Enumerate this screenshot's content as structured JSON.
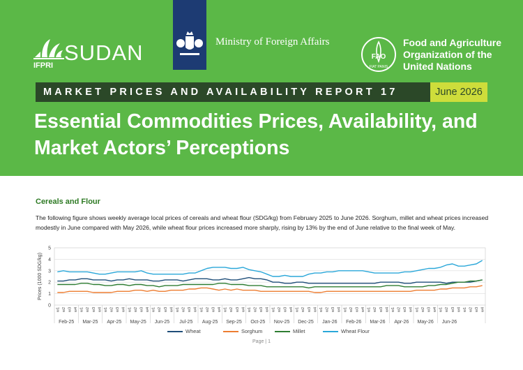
{
  "header": {
    "ifpri_label": "IFPRI",
    "sudan_label": "SUDAN",
    "ministry_label": "Ministry of Foreign Affairs",
    "fao_lines": [
      "Food and Agriculture",
      "Organization of the",
      "United Nations"
    ],
    "fao_letters": "FAO",
    "fao_motto": "FIAT PANIS",
    "report_title": "MARKET PRICES AND AVAILABILITY REPORT 17",
    "report_date": "June 2026",
    "main_title": "Essential Commodities Prices, Availability, and Market Actors’ Perceptions"
  },
  "body": {
    "section_heading": "Cereals and Flour",
    "paragraph": "The following figure shows weekly average local prices of cereals and wheat flour (SDG/kg) from February 2025 to June 2026. Sorghum, millet and wheat prices increased modestly in June compared with May 2026, while wheat flour prices increased more sharply, rising by 13% by the end of June relative to the final week of May."
  },
  "chart_data": {
    "type": "line",
    "ylabel": "Prices (1000 SDG/kg)",
    "ylim": [
      0,
      5
    ],
    "yticks": [
      "0",
      "1",
      "2",
      "3",
      "4",
      "5"
    ],
    "grid": true,
    "legend_position": "bottom",
    "week_labels": [
      "w1",
      "w2",
      "w3",
      "w4"
    ],
    "months": [
      "Feb-25",
      "Mar-25",
      "Apr-25",
      "May-25",
      "Jun-25",
      "Jul-25",
      "Aug-25",
      "Sep-25",
      "Oct-25",
      "Nov-25",
      "Dec-25",
      "Jan-26",
      "Feb-26",
      "Mar-26",
      "Apr-26",
      "May-26",
      "Jun-26"
    ],
    "series": [
      {
        "name": "Wheat",
        "color": "#1f4e79",
        "values": [
          2.1,
          2.1,
          2.2,
          2.2,
          2.3,
          2.3,
          2.2,
          2.2,
          2.2,
          2.1,
          2.2,
          2.2,
          2.3,
          2.2,
          2.2,
          2.2,
          2.1,
          2.1,
          2.2,
          2.2,
          2.2,
          2.1,
          2.2,
          2.3,
          2.3,
          2.3,
          2.2,
          2.2,
          2.3,
          2.2,
          2.2,
          2.3,
          2.4,
          2.3,
          2.3,
          2.2,
          2.0,
          2.0,
          1.9,
          1.9,
          2.0,
          2.0,
          1.9,
          1.9,
          1.9,
          1.9,
          1.9,
          1.9,
          1.9,
          1.9,
          1.9,
          1.9,
          1.9,
          1.9,
          2.0,
          2.0,
          2.0,
          2.0,
          1.9,
          1.9,
          2.0,
          2.0,
          2.0,
          2.0,
          2.0,
          1.9,
          2.0,
          2.0,
          2.0,
          2.0,
          2.1,
          2.2
        ]
      },
      {
        "name": "Sorghum",
        "color": "#ed7d31",
        "values": [
          1.1,
          1.1,
          1.2,
          1.2,
          1.2,
          1.2,
          1.1,
          1.1,
          1.1,
          1.1,
          1.2,
          1.2,
          1.2,
          1.3,
          1.3,
          1.2,
          1.3,
          1.2,
          1.2,
          1.3,
          1.3,
          1.3,
          1.4,
          1.4,
          1.5,
          1.5,
          1.4,
          1.3,
          1.4,
          1.3,
          1.4,
          1.3,
          1.3,
          1.3,
          1.2,
          1.2,
          1.2,
          1.2,
          1.2,
          1.2,
          1.2,
          1.2,
          1.2,
          1.1,
          1.1,
          1.2,
          1.2,
          1.2,
          1.2,
          1.2,
          1.2,
          1.2,
          1.2,
          1.2,
          1.2,
          1.2,
          1.2,
          1.2,
          1.2,
          1.2,
          1.3,
          1.3,
          1.3,
          1.3,
          1.4,
          1.4,
          1.5,
          1.5,
          1.5,
          1.6,
          1.6,
          1.7
        ]
      },
      {
        "name": "Millet",
        "color": "#2e7d32",
        "values": [
          1.8,
          1.8,
          1.8,
          1.8,
          1.9,
          1.9,
          1.8,
          1.8,
          1.7,
          1.7,
          1.8,
          1.8,
          1.7,
          1.8,
          1.8,
          1.7,
          1.7,
          1.6,
          1.7,
          1.7,
          1.7,
          1.8,
          1.8,
          1.8,
          1.8,
          1.8,
          1.8,
          1.9,
          1.9,
          1.8,
          1.8,
          1.8,
          1.7,
          1.7,
          1.7,
          1.6,
          1.6,
          1.6,
          1.6,
          1.6,
          1.6,
          1.6,
          1.5,
          1.6,
          1.6,
          1.6,
          1.6,
          1.6,
          1.6,
          1.6,
          1.6,
          1.6,
          1.6,
          1.6,
          1.6,
          1.7,
          1.7,
          1.7,
          1.6,
          1.6,
          1.6,
          1.6,
          1.7,
          1.7,
          1.8,
          1.8,
          1.9,
          2.0,
          2.0,
          2.1,
          2.1,
          2.2
        ]
      },
      {
        "name": "Wheat Flour",
        "color": "#2aa7d9",
        "values": [
          2.9,
          3.0,
          2.9,
          2.9,
          2.9,
          2.9,
          2.8,
          2.7,
          2.7,
          2.8,
          2.9,
          2.9,
          2.9,
          2.9,
          3.0,
          2.8,
          2.7,
          2.7,
          2.7,
          2.7,
          2.7,
          2.7,
          2.8,
          2.8,
          3.0,
          3.2,
          3.3,
          3.3,
          3.3,
          3.2,
          3.2,
          3.3,
          3.1,
          3.0,
          2.9,
          2.7,
          2.5,
          2.5,
          2.6,
          2.5,
          2.5,
          2.5,
          2.7,
          2.8,
          2.8,
          2.9,
          2.9,
          3.0,
          3.0,
          3.0,
          3.0,
          3.0,
          2.9,
          2.8,
          2.8,
          2.8,
          2.8,
          2.8,
          2.9,
          2.9,
          3.0,
          3.1,
          3.2,
          3.2,
          3.3,
          3.5,
          3.6,
          3.4,
          3.4,
          3.5,
          3.6,
          3.9
        ]
      }
    ]
  },
  "footer": {
    "page_label": "Page | 1"
  }
}
